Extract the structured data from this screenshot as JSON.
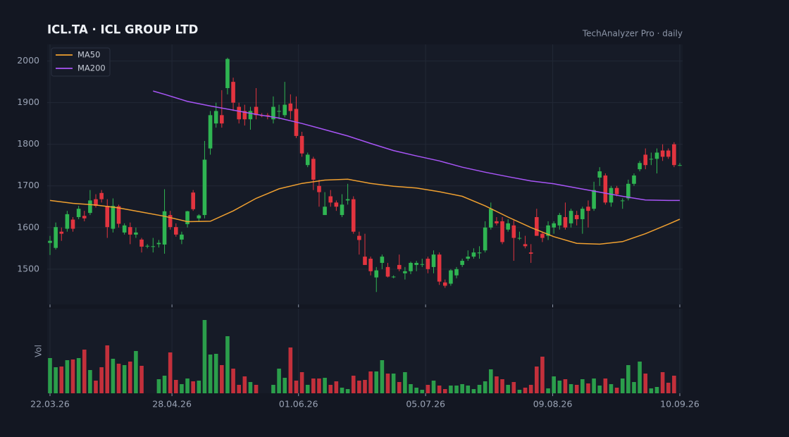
{
  "chart_data": {
    "type": "candlestick",
    "title": "ICL.TA  ·  ICL GROUP LTD",
    "subtitle": "TechAnalyzer Pro · daily",
    "volume_label": "Vol",
    "up_color": "#2fb552",
    "down_color": "#e2343f",
    "grid": true,
    "legend": "top-left",
    "xlim": [
      0,
      110
    ],
    "xticks": [
      {
        "value": 0,
        "label": "22.03.26"
      },
      {
        "value": 21.3,
        "label": "28.04.26"
      },
      {
        "value": 43.4,
        "label": "01.06.26"
      },
      {
        "value": 65.6,
        "label": "05.07.26"
      },
      {
        "value": 87.8,
        "label": "09.08.26"
      },
      {
        "value": 110,
        "label": "10.09.26"
      }
    ],
    "ylim": [
      1415,
      2040
    ],
    "yticks": [
      1500,
      1600,
      1700,
      1800,
      1900,
      2000
    ],
    "vol_ylim": [
      0,
      120
    ],
    "open": [
      1563,
      1551,
      1590,
      1597,
      1619,
      1625,
      1628,
      1635,
      1668,
      1683,
      1652,
      1597,
      1651,
      1588,
      1601,
      1583,
      1571,
      1555,
      1555,
      1560,
      1559,
      1630,
      1601,
      1571,
      1608,
      1684,
      1622,
      1630,
      1790,
      1850,
      1870,
      1935,
      1950,
      1890,
      1880,
      1860,
      1890,
      1870,
      1870,
      1860,
      1880,
      1870,
      1898,
      1885,
      1820,
      1750,
      1765,
      1700,
      1630,
      1675,
      1660,
      1630,
      1665,
      1668,
      1580,
      1530,
      1525,
      1480,
      1515,
      1505,
      1482,
      1510,
      1490,
      1495,
      1510,
      1512,
      1525,
      1505,
      1535,
      1468,
      1465,
      1485,
      1510,
      1525,
      1530,
      1538,
      1545,
      1600,
      1615,
      1615,
      1595,
      1605,
      1575,
      1560,
      1540,
      1625,
      1585,
      1580,
      1600,
      1605,
      1625,
      1610,
      1630,
      1620,
      1650,
      1645,
      1720,
      1725,
      1660,
      1695,
      1665,
      1670,
      1705,
      1740,
      1775,
      1765,
      1765,
      1785,
      1785,
      1800,
      1750
    ],
    "high": [
      1580,
      1612,
      1600,
      1640,
      1625,
      1652,
      1640,
      1690,
      1680,
      1690,
      1668,
      1670,
      1655,
      1610,
      1612,
      1600,
      1575,
      1560,
      1575,
      1570,
      1692,
      1640,
      1610,
      1590,
      1640,
      1690,
      1632,
      1808,
      1880,
      1900,
      1930,
      2008,
      1960,
      1900,
      1895,
      1890,
      1935,
      1875,
      1875,
      1915,
      1895,
      1950,
      1920,
      1915,
      1830,
      1780,
      1770,
      1715,
      1685,
      1690,
      1665,
      1680,
      1705,
      1675,
      1590,
      1585,
      1530,
      1505,
      1535,
      1515,
      1485,
      1535,
      1505,
      1518,
      1520,
      1525,
      1530,
      1545,
      1540,
      1475,
      1500,
      1505,
      1525,
      1545,
      1550,
      1555,
      1615,
      1660,
      1625,
      1625,
      1620,
      1620,
      1590,
      1580,
      1560,
      1645,
      1590,
      1615,
      1615,
      1635,
      1660,
      1645,
      1640,
      1650,
      1665,
      1710,
      1745,
      1730,
      1700,
      1700,
      1670,
      1715,
      1730,
      1760,
      1790,
      1780,
      1790,
      1800,
      1790,
      1805,
      1755
    ],
    "low": [
      1534,
      1547,
      1568,
      1590,
      1590,
      1620,
      1615,
      1630,
      1648,
      1660,
      1575,
      1588,
      1600,
      1583,
      1560,
      1575,
      1540,
      1550,
      1540,
      1552,
      1537,
      1595,
      1578,
      1560,
      1600,
      1640,
      1615,
      1622,
      1775,
      1840,
      1840,
      1920,
      1880,
      1850,
      1845,
      1835,
      1860,
      1865,
      1860,
      1850,
      1860,
      1865,
      1860,
      1815,
      1770,
      1745,
      1690,
      1650,
      1630,
      1650,
      1640,
      1625,
      1655,
      1585,
      1535,
      1510,
      1485,
      1445,
      1500,
      1480,
      1478,
      1495,
      1475,
      1488,
      1495,
      1505,
      1490,
      1490,
      1462,
      1455,
      1460,
      1478,
      1505,
      1520,
      1525,
      1525,
      1540,
      1595,
      1605,
      1560,
      1590,
      1520,
      1570,
      1550,
      1515,
      1580,
      1565,
      1570,
      1585,
      1595,
      1595,
      1600,
      1605,
      1585,
      1600,
      1640,
      1700,
      1655,
      1650,
      1675,
      1645,
      1665,
      1700,
      1735,
      1740,
      1750,
      1730,
      1760,
      1765,
      1745,
      1748
    ],
    "close": [
      1568,
      1601,
      1585,
      1632,
      1597,
      1645,
      1622,
      1665,
      1652,
      1668,
      1601,
      1652,
      1609,
      1605,
      1583,
      1588,
      1554,
      1556,
      1555,
      1563,
      1639,
      1601,
      1583,
      1583,
      1639,
      1644,
      1629,
      1763,
      1870,
      1880,
      1850,
      2005,
      1900,
      1860,
      1860,
      1880,
      1870,
      1868,
      1868,
      1890,
      1880,
      1895,
      1880,
      1820,
      1778,
      1775,
      1715,
      1685,
      1650,
      1660,
      1650,
      1655,
      1668,
      1590,
      1570,
      1510,
      1495,
      1497,
      1530,
      1482,
      1482,
      1500,
      1495,
      1515,
      1515,
      1512,
      1500,
      1535,
      1470,
      1460,
      1497,
      1500,
      1520,
      1530,
      1540,
      1540,
      1600,
      1645,
      1610,
      1565,
      1610,
      1575,
      1575,
      1555,
      1537,
      1580,
      1575,
      1605,
      1610,
      1630,
      1600,
      1640,
      1620,
      1645,
      1640,
      1690,
      1735,
      1660,
      1695,
      1680,
      1665,
      1705,
      1725,
      1755,
      1750,
      1765,
      1780,
      1770,
      1770,
      1750,
      1750
    ],
    "volume": [
      50,
      37,
      38,
      47,
      48,
      50,
      62,
      33,
      18,
      37,
      68,
      49,
      42,
      40,
      45,
      60,
      39,
      0,
      0,
      20,
      25,
      58,
      19,
      13,
      21,
      17,
      18,
      104,
      55,
      56,
      40,
      81,
      35,
      12,
      24,
      16,
      12,
      0,
      0,
      12,
      35,
      22,
      65,
      18,
      30,
      12,
      21,
      21,
      22,
      12,
      17,
      8,
      6,
      25,
      18,
      19,
      31,
      31,
      47,
      28,
      28,
      16,
      30,
      13,
      8,
      5,
      12,
      18,
      11,
      6,
      11,
      11,
      13,
      11,
      6,
      12,
      17,
      34,
      24,
      20,
      12,
      16,
      5,
      8,
      12,
      38,
      52,
      7,
      24,
      18,
      20,
      13,
      12,
      20,
      14,
      21,
      11,
      21,
      13,
      8,
      21,
      40,
      16,
      45,
      28,
      7,
      9,
      30,
      15,
      25,
      0
    ],
    "series": [
      {
        "name": "MA50",
        "color": "#f0a030",
        "x": [
          0,
          4,
          8,
          12,
          16,
          20,
          24,
          28,
          32,
          36,
          40,
          44,
          48,
          52,
          56,
          60,
          64,
          68,
          72,
          76,
          80,
          84,
          88,
          92,
          96,
          100,
          104,
          108,
          110
        ],
        "values": [
          1665,
          1658,
          1654,
          1647,
          1637,
          1627,
          1614,
          1615,
          1640,
          1670,
          1693,
          1706,
          1714,
          1716,
          1706,
          1699,
          1695,
          1686,
          1675,
          1652,
          1625,
          1600,
          1578,
          1562,
          1560,
          1566,
          1585,
          1608,
          1620
        ]
      },
      {
        "name": "MA200",
        "color": "#a855f7",
        "x": [
          18,
          20,
          24,
          28,
          32,
          36,
          40,
          44,
          48,
          52,
          56,
          60,
          64,
          68,
          72,
          76,
          80,
          84,
          88,
          92,
          96,
          100,
          104,
          108,
          110
        ],
        "values": [
          1928,
          1920,
          1903,
          1892,
          1882,
          1872,
          1863,
          1850,
          1835,
          1820,
          1802,
          1785,
          1772,
          1760,
          1745,
          1733,
          1722,
          1712,
          1705,
          1695,
          1685,
          1675,
          1666,
          1665,
          1665
        ]
      }
    ]
  }
}
